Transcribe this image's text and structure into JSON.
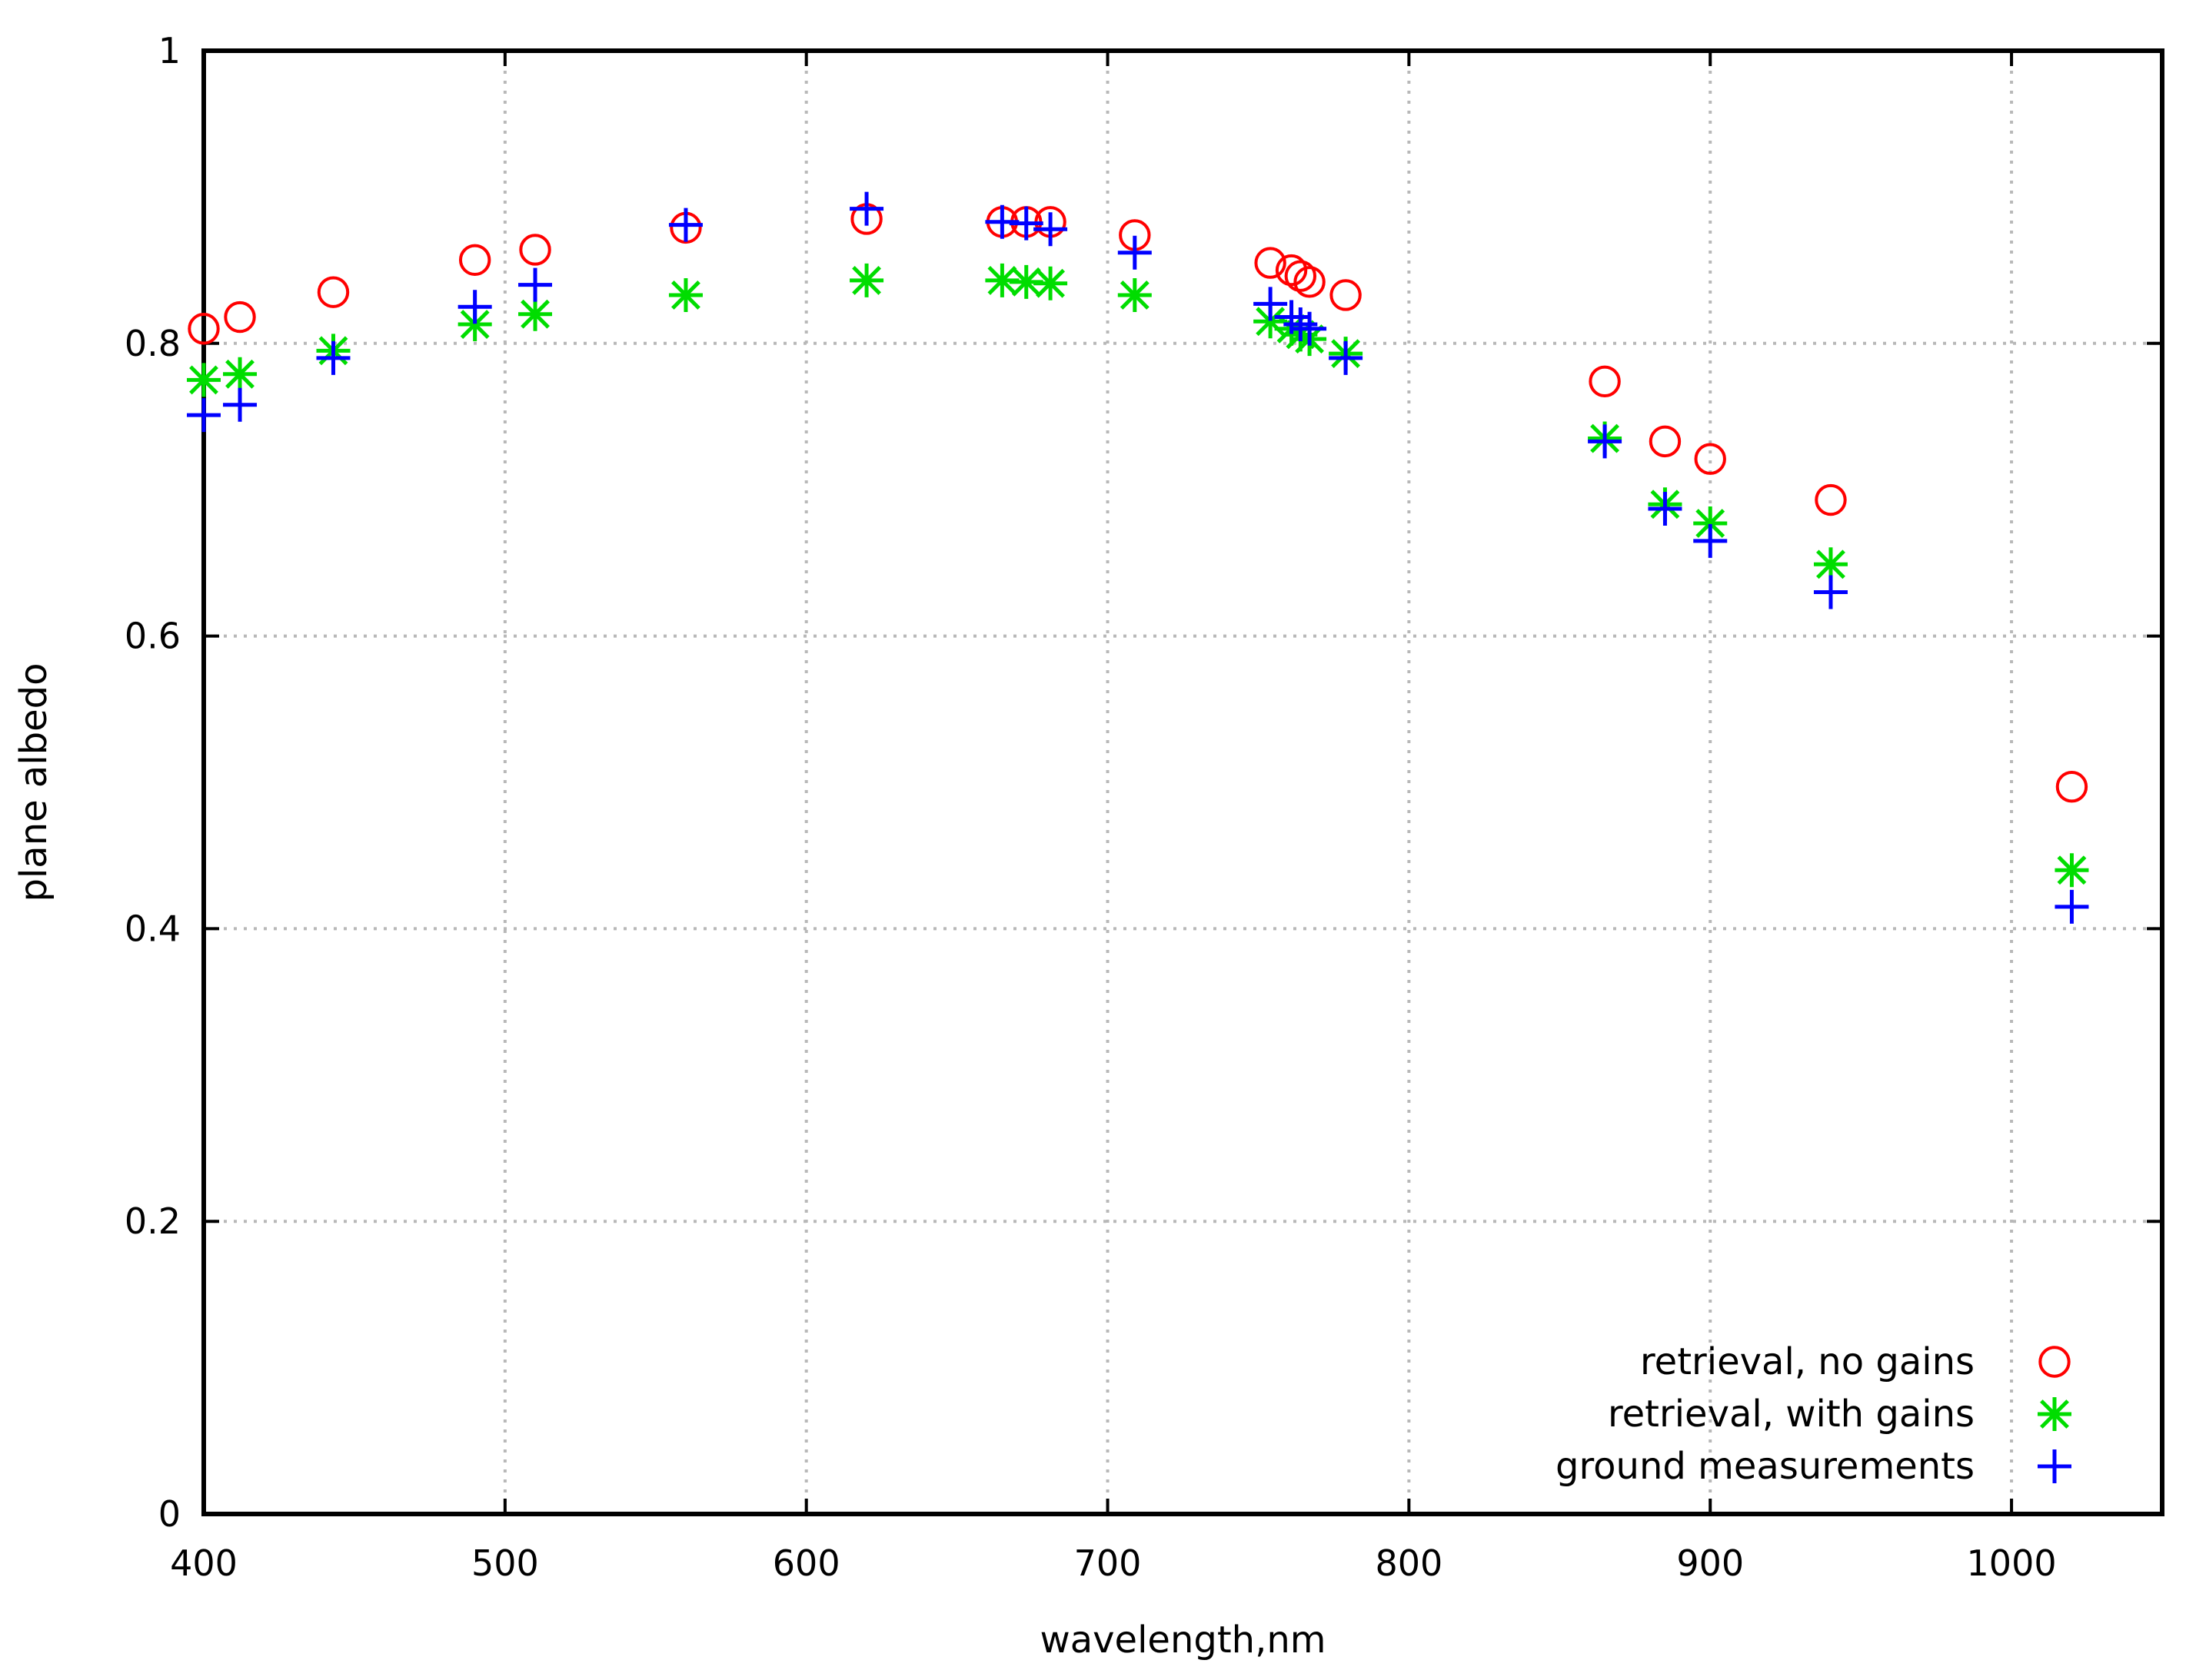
{
  "chart_data": {
    "type": "scatter",
    "title": "",
    "xlabel": "wavelength,nm",
    "ylabel": "plane albedo",
    "xlim": [
      400,
      1050
    ],
    "ylim": [
      0,
      1
    ],
    "xticks": [
      400,
      500,
      600,
      700,
      800,
      900,
      1000
    ],
    "xtick_labels": [
      "400",
      "500",
      "600",
      "700",
      "800",
      "900",
      "1000"
    ],
    "yticks": [
      0,
      0.2,
      0.4,
      0.6,
      0.8,
      1
    ],
    "ytick_labels": [
      "0",
      "0.2",
      "0.4",
      "0.6",
      "0.8",
      "1"
    ],
    "grid": true,
    "legend_position": "bottom-right",
    "series": [
      {
        "name": "retrieval, no gains",
        "marker": "circle",
        "color": "#ff0000",
        "x": [
          400,
          412,
          443,
          490,
          510,
          560,
          620,
          665,
          673,
          681,
          709,
          754,
          761,
          764,
          767,
          779,
          865,
          885,
          900,
          940,
          1020
        ],
        "y": [
          0.81,
          0.818,
          0.835,
          0.857,
          0.864,
          0.879,
          0.885,
          0.883,
          0.883,
          0.883,
          0.874,
          0.855,
          0.85,
          0.846,
          0.842,
          0.833,
          0.774,
          0.733,
          0.721,
          0.693,
          0.497
        ]
      },
      {
        "name": "retrieval, with gains",
        "marker": "asterisk",
        "color": "#00dd00",
        "x": [
          400,
          412,
          443,
          490,
          510,
          560,
          620,
          665,
          673,
          681,
          709,
          754,
          761,
          764,
          767,
          779,
          865,
          885,
          900,
          940,
          1020
        ],
        "y": [
          0.775,
          0.779,
          0.795,
          0.813,
          0.82,
          0.833,
          0.843,
          0.843,
          0.842,
          0.841,
          0.833,
          0.815,
          0.81,
          0.806,
          0.803,
          0.793,
          0.735,
          0.69,
          0.677,
          0.649,
          0.44
        ]
      },
      {
        "name": "ground measurements",
        "marker": "plus",
        "color": "#0000ff",
        "x": [
          400,
          412,
          443,
          490,
          510,
          560,
          620,
          665,
          673,
          681,
          709,
          754,
          761,
          764,
          767,
          779,
          865,
          885,
          900,
          940,
          1020
        ],
        "y": [
          0.751,
          0.758,
          0.79,
          0.825,
          0.84,
          0.881,
          0.892,
          0.883,
          0.882,
          0.878,
          0.862,
          0.827,
          0.818,
          0.813,
          0.81,
          0.79,
          0.733,
          0.687,
          0.665,
          0.63,
          0.415
        ]
      }
    ]
  }
}
